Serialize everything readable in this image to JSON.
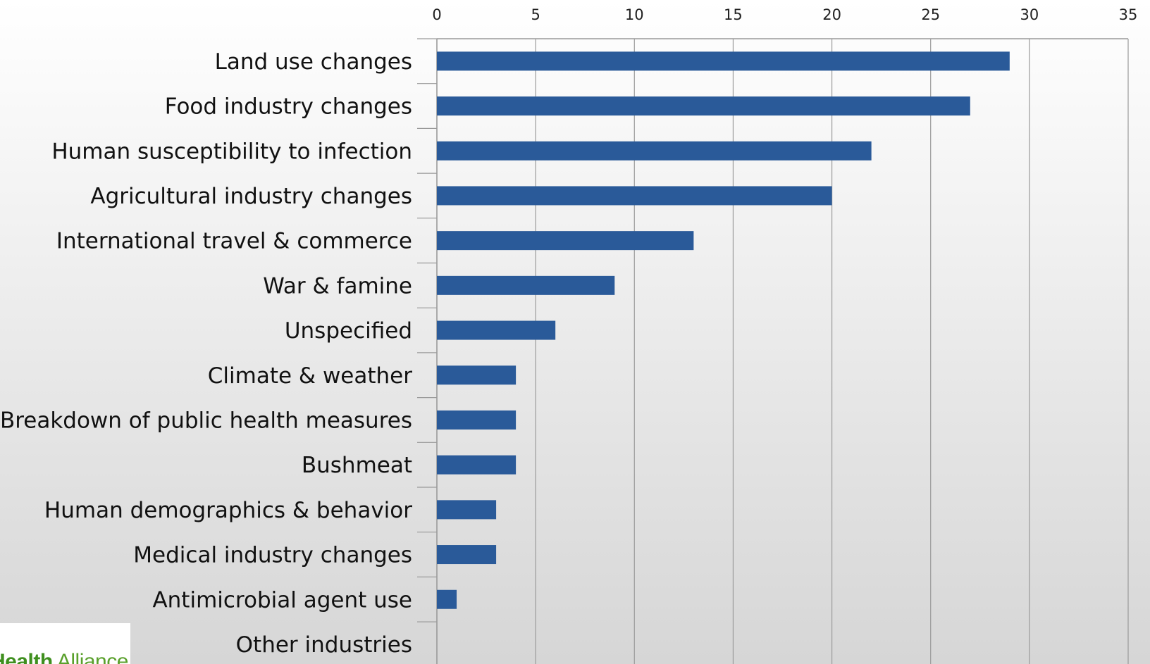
{
  "chart_data": {
    "type": "bar",
    "orientation": "horizontal",
    "categories": [
      "Land use changes",
      "Food industry changes",
      "Human susceptibility to infection",
      "Agricultural industry changes",
      "International travel & commerce",
      "War & famine",
      "Unspecified",
      "Climate & weather",
      "Breakdown of public health measures",
      "Bushmeat",
      "Human demographics & behavior",
      "Medical industry changes",
      "Antimicrobial agent use",
      "Other industries"
    ],
    "values": [
      29,
      27,
      22,
      20,
      13,
      9,
      6,
      4,
      4,
      4,
      3,
      3,
      1,
      0
    ],
    "xlim": [
      0,
      35
    ],
    "x_ticks": [
      "0",
      "5",
      "10",
      "15",
      "20",
      "25",
      "30",
      "35"
    ],
    "x_axis_position": "top",
    "grid": true,
    "legend": "none",
    "title": "",
    "xlabel": "",
    "ylabel": "",
    "bar_color": "#2a5a99",
    "grid_color": "#9a9a9a"
  },
  "logo": {
    "text_bold": "Health",
    "text_regular": " Alliance",
    "color": "#5aa02c"
  }
}
